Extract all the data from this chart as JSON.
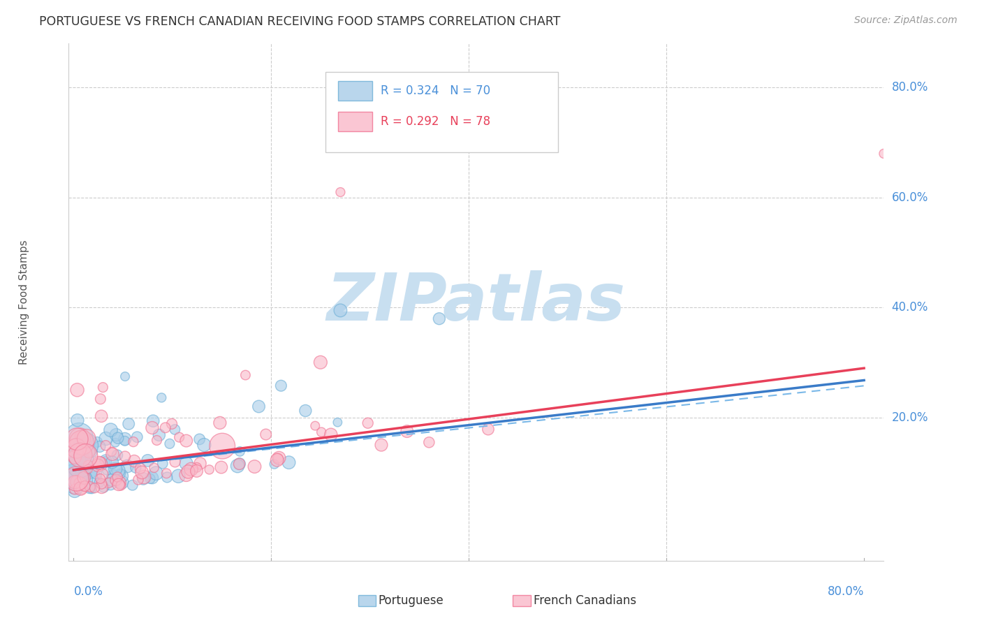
{
  "title": "PORTUGUESE VS FRENCH CANADIAN RECEIVING FOOD STAMPS CORRELATION CHART",
  "source": "Source: ZipAtlas.com",
  "ylabel": "Receiving Food Stamps",
  "ytick_labels": [
    "20.0%",
    "40.0%",
    "60.0%",
    "80.0%"
  ],
  "ytick_values": [
    0.2,
    0.4,
    0.6,
    0.8
  ],
  "xtick_labels": [
    "0.0%",
    "80.0%"
  ],
  "xlim": [
    -0.005,
    0.82
  ],
  "ylim": [
    -0.06,
    0.88
  ],
  "portuguese_color_face": "#a8cce8",
  "portuguese_color_edge": "#6baed6",
  "french_color_face": "#f9b8c8",
  "french_color_edge": "#f07090",
  "trend_portuguese_color": "#3a7bc8",
  "trend_french_color": "#e8405a",
  "trend_dashed_color": "#7ab8e8",
  "watermark_color": "#c8dff0",
  "background_color": "#ffffff",
  "grid_color": "#cccccc",
  "title_color": "#333333",
  "source_color": "#999999",
  "axis_label_color": "#4a90d9",
  "ylabel_color": "#555555",
  "legend_text_color_port": "#4a90d9",
  "legend_text_color_french": "#e8405a",
  "trend_port_start_y": 0.105,
  "trend_port_end_y": 0.268,
  "trend_french_start_y": 0.105,
  "trend_french_end_y": 0.29,
  "trend_dash_start_y": 0.105,
  "trend_dash_end_y": 0.258
}
